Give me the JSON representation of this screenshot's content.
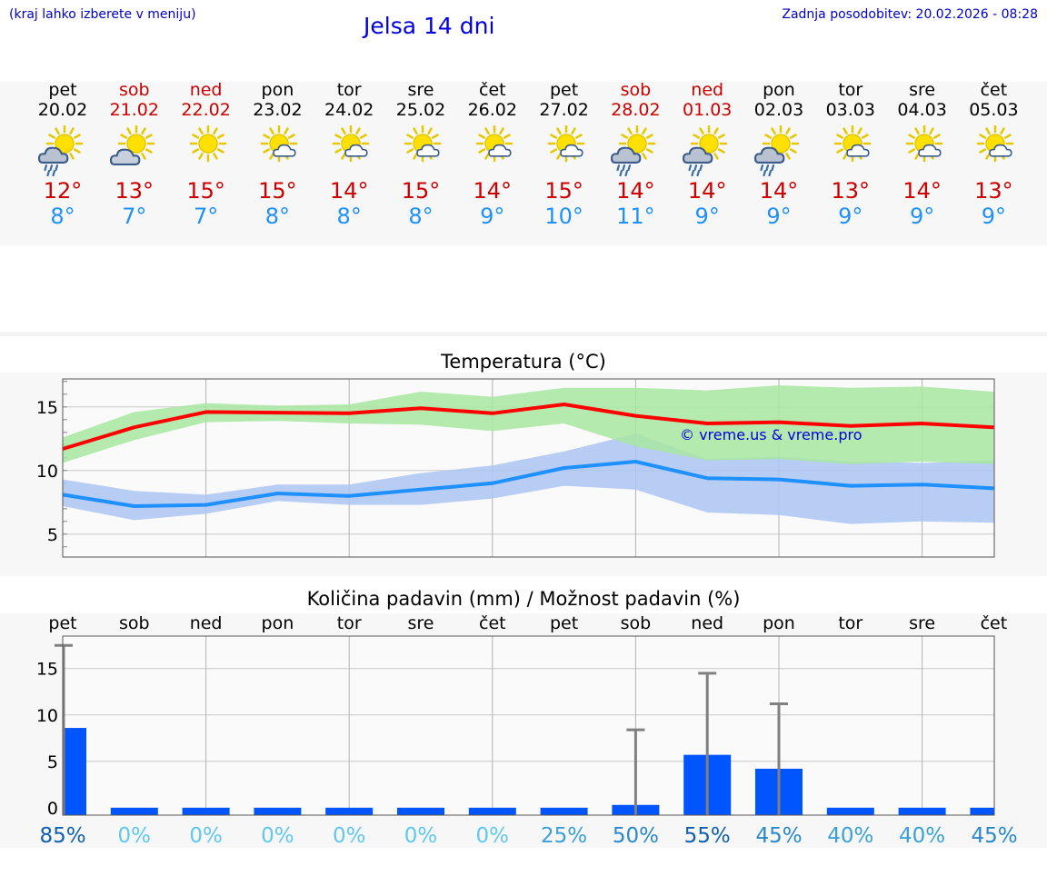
{
  "header": {
    "hint": "(kraj lahko izberete v meniju)",
    "title": "Jelsa 14 dni",
    "updated": "Zadnja posodobitev: 20.02.2026 - 08:28"
  },
  "days": [
    {
      "name": "pet",
      "date": "20.02",
      "weekend": false,
      "icon": "sun-cloud-rain-icon",
      "max": "12°",
      "min": "8°"
    },
    {
      "name": "sob",
      "date": "21.02",
      "weekend": true,
      "icon": "sun-cloud-icon",
      "max": "13°",
      "min": "7°"
    },
    {
      "name": "ned",
      "date": "22.02",
      "weekend": true,
      "icon": "sun-icon",
      "max": "15°",
      "min": "7°"
    },
    {
      "name": "pon",
      "date": "23.02",
      "weekend": false,
      "icon": "sun-small-cloud-icon",
      "max": "15°",
      "min": "8°"
    },
    {
      "name": "tor",
      "date": "24.02",
      "weekend": false,
      "icon": "sun-small-cloud-icon",
      "max": "14°",
      "min": "8°"
    },
    {
      "name": "sre",
      "date": "25.02",
      "weekend": false,
      "icon": "sun-small-cloud-icon",
      "max": "15°",
      "min": "8°"
    },
    {
      "name": "čet",
      "date": "26.02",
      "weekend": false,
      "icon": "sun-small-cloud-icon",
      "max": "14°",
      "min": "9°"
    },
    {
      "name": "pet",
      "date": "27.02",
      "weekend": false,
      "icon": "sun-small-cloud-icon",
      "max": "15°",
      "min": "10°"
    },
    {
      "name": "sob",
      "date": "28.02",
      "weekend": true,
      "icon": "sun-cloud-rain-icon",
      "max": "14°",
      "min": "11°"
    },
    {
      "name": "ned",
      "date": "01.03",
      "weekend": true,
      "icon": "sun-cloud-rain-icon",
      "max": "14°",
      "min": "9°"
    },
    {
      "name": "pon",
      "date": "02.03",
      "weekend": false,
      "icon": "sun-cloud-rain-icon",
      "max": "14°",
      "min": "9°"
    },
    {
      "name": "tor",
      "date": "03.03",
      "weekend": false,
      "icon": "sun-small-cloud-icon",
      "max": "13°",
      "min": "9°"
    },
    {
      "name": "sre",
      "date": "04.03",
      "weekend": false,
      "icon": "sun-small-cloud-icon",
      "max": "14°",
      "min": "9°"
    },
    {
      "name": "čet",
      "date": "05.03",
      "weekend": false,
      "icon": "sun-small-cloud-icon",
      "max": "13°",
      "min": "9°"
    }
  ],
  "colors": {
    "max_line": "#ff0000",
    "min_line": "#1e90ff",
    "max_band": "#a8e6a1",
    "min_band": "#aac4f2",
    "bar": "#0055ff",
    "whisker": "#808080",
    "prob_dark": "#1060b0",
    "prob_light": "#60c8f0"
  },
  "chart_data": [
    {
      "type": "line",
      "title": "Temperatura (°C)",
      "watermark": "© vreme.us & vreme.pro",
      "ylim": [
        3.2,
        17.2
      ],
      "yticks": [
        5,
        10,
        15
      ],
      "x": [
        0,
        1,
        2,
        3,
        4,
        5,
        6,
        7,
        8,
        9,
        10,
        11,
        12,
        13
      ],
      "series": [
        {
          "name": "max",
          "values": [
            11.7,
            13.4,
            14.6,
            14.55,
            14.5,
            14.9,
            14.5,
            15.2,
            14.3,
            13.7,
            13.8,
            13.5,
            13.7,
            13.4
          ],
          "band_low": [
            10.6,
            12.4,
            13.8,
            13.9,
            13.7,
            13.6,
            13.1,
            13.7,
            11.9,
            10.8,
            10.9,
            10.5,
            10.7,
            10.5
          ],
          "band_high": [
            12.6,
            14.6,
            15.3,
            15.1,
            15.2,
            16.2,
            15.8,
            16.5,
            16.5,
            16.3,
            16.7,
            16.5,
            16.6,
            16.2
          ]
        },
        {
          "name": "min",
          "values": [
            8.1,
            7.2,
            7.3,
            8.2,
            8.0,
            8.5,
            9.0,
            10.2,
            10.7,
            9.4,
            9.3,
            8.8,
            8.9,
            8.6
          ],
          "band_low": [
            7.2,
            6.1,
            6.6,
            7.6,
            7.3,
            7.3,
            7.8,
            8.8,
            8.5,
            6.7,
            6.5,
            5.8,
            6.0,
            5.9
          ],
          "band_high": [
            9.3,
            8.4,
            8.1,
            8.9,
            8.9,
            9.8,
            10.4,
            11.5,
            12.9,
            10.9,
            11.1,
            10.7,
            10.6,
            10.8
          ]
        }
      ]
    },
    {
      "type": "bar",
      "title": "Količina padavin (mm) / Možnost padavin (%)",
      "categories": [
        "pet",
        "sob",
        "ned",
        "pon",
        "tor",
        "sre",
        "čet",
        "pet",
        "sob",
        "ned",
        "pon",
        "tor",
        "sre",
        "čet"
      ],
      "ylim": [
        -0.8,
        18.5
      ],
      "yticks": [
        0,
        5,
        10,
        15
      ],
      "values": [
        8.6,
        0,
        0,
        0,
        0,
        0,
        0,
        0,
        0.3,
        5.7,
        4.2,
        0,
        0,
        0
      ],
      "whisker_high": [
        17.5,
        0,
        0,
        0,
        0,
        0,
        0,
        0,
        8.4,
        14.5,
        11.2,
        0,
        0,
        0
      ],
      "probability": [
        "85%",
        "0%",
        "0%",
        "0%",
        "0%",
        "0%",
        "0%",
        "25%",
        "50%",
        "55%",
        "45%",
        "40%",
        "40%",
        "45%"
      ]
    }
  ]
}
